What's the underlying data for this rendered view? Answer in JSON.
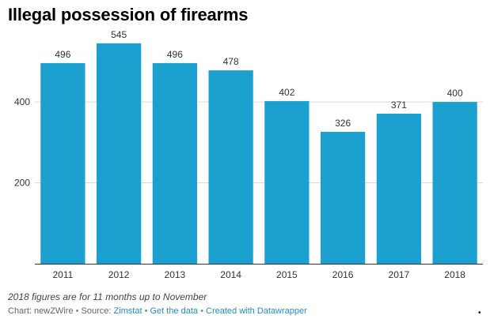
{
  "chart_data": {
    "type": "bar",
    "title": "Illegal possession of firearms",
    "categories": [
      "2011",
      "2012",
      "2013",
      "2014",
      "2015",
      "2016",
      "2017",
      "2018"
    ],
    "values": [
      496,
      545,
      496,
      478,
      402,
      326,
      371,
      400
    ],
    "data_labels": [
      "496",
      "545",
      "496",
      "478",
      "402",
      "326",
      "371",
      "400"
    ],
    "xlabel": "",
    "ylabel": "",
    "ylim": [
      0,
      570
    ],
    "yticks": [
      200,
      400
    ],
    "ytick_labels": [
      "200",
      "400"
    ],
    "grid": true,
    "bar_color": "#1ba0cf",
    "grid_color": "#d9d9d9",
    "axis_color": "#333333",
    "text_color": "#333333"
  },
  "note": "2018 figures are for 11 months up to November",
  "footer": {
    "credit": "Chart: newZWire",
    "sep1": " • ",
    "source_prefix": "Source: ",
    "source_link": "Zimstat",
    "sep2": " • ",
    "get_data": "Get the data",
    "sep3": " • ",
    "created_with": "Created with Datawrapper"
  },
  "corner_mark": "•"
}
